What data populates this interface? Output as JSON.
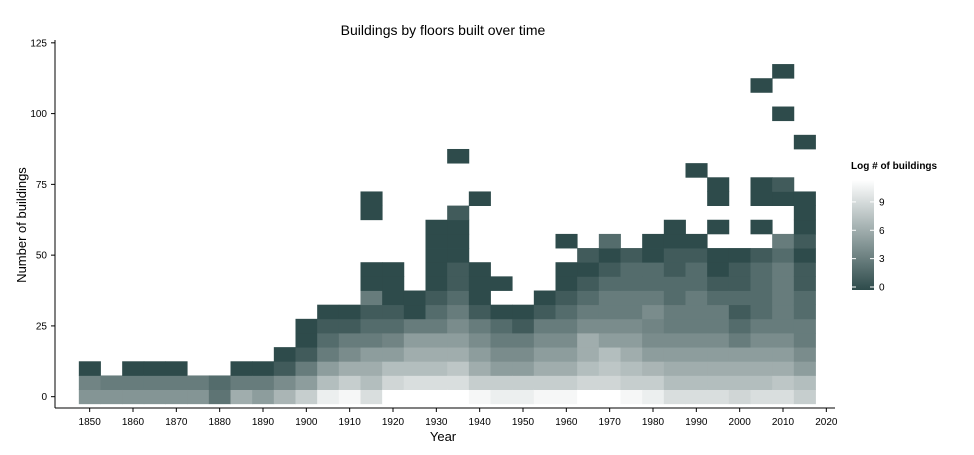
{
  "chart_data": {
    "type": "heatmap",
    "title": "Buildings by floors built over time",
    "xlabel": "Year",
    "ylabel": "Number of buildings",
    "xlim": [
      1842,
      2022
    ],
    "ylim": [
      -4,
      126
    ],
    "x_ticks": [
      1850,
      1860,
      1870,
      1880,
      1890,
      1900,
      1910,
      1920,
      1930,
      1940,
      1950,
      1960,
      1970,
      1980,
      1990,
      2000,
      2010,
      2020
    ],
    "y_ticks": [
      0,
      25,
      50,
      75,
      100,
      125
    ],
    "grid": false,
    "legend": {
      "title": "Log # of buildings",
      "position": "right",
      "min": 0,
      "max": 11,
      "ticks": [
        0,
        3,
        6,
        9
      ],
      "color_low": "#2e4b4b",
      "color_high": "#ffffff"
    },
    "bin_width_x": 5,
    "bin_width_y": 5,
    "cells": [
      [
        1850,
        0,
        4.5
      ],
      [
        1850,
        5,
        3.5
      ],
      [
        1850,
        10,
        0
      ],
      [
        1855,
        0,
        4.5
      ],
      [
        1855,
        5,
        3
      ],
      [
        1860,
        0,
        4.5
      ],
      [
        1860,
        5,
        3
      ],
      [
        1860,
        10,
        0
      ],
      [
        1865,
        0,
        4.5
      ],
      [
        1865,
        5,
        3
      ],
      [
        1865,
        10,
        0
      ],
      [
        1870,
        0,
        4.5
      ],
      [
        1870,
        5,
        3
      ],
      [
        1870,
        10,
        0
      ],
      [
        1875,
        0,
        4.5
      ],
      [
        1875,
        5,
        3
      ],
      [
        1880,
        0,
        2.5
      ],
      [
        1880,
        5,
        2
      ],
      [
        1885,
        0,
        6
      ],
      [
        1885,
        5,
        3
      ],
      [
        1885,
        10,
        0
      ],
      [
        1890,
        0,
        5
      ],
      [
        1890,
        5,
        3
      ],
      [
        1890,
        10,
        0
      ],
      [
        1895,
        0,
        6.5
      ],
      [
        1895,
        5,
        4
      ],
      [
        1895,
        10,
        1
      ],
      [
        1895,
        15,
        0
      ],
      [
        1900,
        0,
        8
      ],
      [
        1900,
        5,
        5
      ],
      [
        1900,
        10,
        3
      ],
      [
        1900,
        15,
        1
      ],
      [
        1900,
        20,
        0
      ],
      [
        1900,
        25,
        0
      ],
      [
        1905,
        0,
        10
      ],
      [
        1905,
        5,
        7
      ],
      [
        1905,
        10,
        5
      ],
      [
        1905,
        15,
        3
      ],
      [
        1905,
        20,
        2
      ],
      [
        1905,
        25,
        1
      ],
      [
        1905,
        30,
        0
      ],
      [
        1910,
        0,
        10.5
      ],
      [
        1910,
        5,
        8
      ],
      [
        1910,
        10,
        6
      ],
      [
        1910,
        15,
        4
      ],
      [
        1910,
        20,
        3
      ],
      [
        1910,
        25,
        1
      ],
      [
        1910,
        30,
        0
      ],
      [
        1915,
        0,
        9
      ],
      [
        1915,
        5,
        7
      ],
      [
        1915,
        10,
        6
      ],
      [
        1915,
        15,
        5
      ],
      [
        1915,
        20,
        3
      ],
      [
        1915,
        25,
        2
      ],
      [
        1915,
        30,
        1
      ],
      [
        1915,
        35,
        3
      ],
      [
        1915,
        40,
        0
      ],
      [
        1915,
        45,
        0
      ],
      [
        1915,
        65,
        0
      ],
      [
        1915,
        70,
        0
      ],
      [
        1920,
        0,
        11
      ],
      [
        1920,
        5,
        8.5
      ],
      [
        1920,
        10,
        7
      ],
      [
        1920,
        15,
        5
      ],
      [
        1920,
        20,
        3.5
      ],
      [
        1920,
        25,
        2
      ],
      [
        1920,
        30,
        1
      ],
      [
        1920,
        35,
        0
      ],
      [
        1920,
        40,
        0
      ],
      [
        1920,
        45,
        0
      ],
      [
        1925,
        0,
        11
      ],
      [
        1925,
        5,
        9
      ],
      [
        1925,
        10,
        7
      ],
      [
        1925,
        15,
        6
      ],
      [
        1925,
        20,
        5
      ],
      [
        1925,
        25,
        3
      ],
      [
        1925,
        30,
        0
      ],
      [
        1925,
        35,
        0
      ],
      [
        1930,
        0,
        11
      ],
      [
        1930,
        5,
        9
      ],
      [
        1930,
        10,
        7
      ],
      [
        1930,
        15,
        6
      ],
      [
        1930,
        20,
        5
      ],
      [
        1930,
        25,
        3
      ],
      [
        1930,
        30,
        2
      ],
      [
        1930,
        35,
        1
      ],
      [
        1930,
        40,
        0
      ],
      [
        1930,
        45,
        0
      ],
      [
        1930,
        50,
        0
      ],
      [
        1930,
        55,
        0
      ],
      [
        1930,
        60,
        0
      ],
      [
        1935,
        0,
        11
      ],
      [
        1935,
        5,
        9
      ],
      [
        1935,
        10,
        7.5
      ],
      [
        1935,
        15,
        6
      ],
      [
        1935,
        20,
        5
      ],
      [
        1935,
        25,
        4
      ],
      [
        1935,
        30,
        3
      ],
      [
        1935,
        35,
        2
      ],
      [
        1935,
        40,
        1
      ],
      [
        1935,
        45,
        1
      ],
      [
        1935,
        50,
        0
      ],
      [
        1935,
        55,
        0
      ],
      [
        1935,
        60,
        0
      ],
      [
        1935,
        65,
        1
      ],
      [
        1935,
        85,
        0
      ],
      [
        1940,
        0,
        10.5
      ],
      [
        1940,
        5,
        8
      ],
      [
        1940,
        10,
        6
      ],
      [
        1940,
        15,
        5
      ],
      [
        1940,
        20,
        4
      ],
      [
        1940,
        25,
        3
      ],
      [
        1940,
        30,
        1
      ],
      [
        1940,
        35,
        0
      ],
      [
        1940,
        40,
        0
      ],
      [
        1940,
        45,
        0
      ],
      [
        1940,
        70,
        0
      ],
      [
        1945,
        0,
        10
      ],
      [
        1945,
        5,
        8
      ],
      [
        1945,
        10,
        5
      ],
      [
        1945,
        15,
        4
      ],
      [
        1945,
        20,
        3
      ],
      [
        1945,
        25,
        2
      ],
      [
        1945,
        30,
        0
      ],
      [
        1945,
        40,
        0
      ],
      [
        1950,
        0,
        10
      ],
      [
        1950,
        5,
        8
      ],
      [
        1950,
        10,
        5
      ],
      [
        1950,
        15,
        4
      ],
      [
        1950,
        20,
        3
      ],
      [
        1950,
        25,
        1
      ],
      [
        1950,
        30,
        0
      ],
      [
        1955,
        0,
        10.5
      ],
      [
        1955,
        5,
        8
      ],
      [
        1955,
        10,
        6
      ],
      [
        1955,
        15,
        5
      ],
      [
        1955,
        20,
        4
      ],
      [
        1955,
        25,
        3
      ],
      [
        1955,
        30,
        1
      ],
      [
        1955,
        35,
        0
      ],
      [
        1960,
        0,
        10.5
      ],
      [
        1960,
        5,
        8
      ],
      [
        1960,
        10,
        6
      ],
      [
        1960,
        15,
        5
      ],
      [
        1960,
        20,
        4
      ],
      [
        1960,
        25,
        3
      ],
      [
        1960,
        30,
        2
      ],
      [
        1960,
        35,
        1
      ],
      [
        1960,
        40,
        0
      ],
      [
        1960,
        45,
        0
      ],
      [
        1960,
        55,
        0
      ],
      [
        1965,
        0,
        11
      ],
      [
        1965,
        5,
        8.5
      ],
      [
        1965,
        10,
        7
      ],
      [
        1965,
        15,
        6
      ],
      [
        1965,
        20,
        6
      ],
      [
        1965,
        25,
        4
      ],
      [
        1965,
        30,
        3
      ],
      [
        1965,
        35,
        2
      ],
      [
        1965,
        40,
        1
      ],
      [
        1965,
        45,
        0
      ],
      [
        1965,
        50,
        1
      ],
      [
        1970,
        0,
        11
      ],
      [
        1970,
        5,
        8.5
      ],
      [
        1970,
        10,
        7.5
      ],
      [
        1970,
        15,
        7
      ],
      [
        1970,
        20,
        5
      ],
      [
        1970,
        25,
        4
      ],
      [
        1970,
        30,
        3
      ],
      [
        1970,
        35,
        3
      ],
      [
        1970,
        40,
        2
      ],
      [
        1970,
        45,
        1
      ],
      [
        1970,
        50,
        0
      ],
      [
        1970,
        55,
        2
      ],
      [
        1975,
        0,
        10.5
      ],
      [
        1975,
        5,
        8
      ],
      [
        1975,
        10,
        7
      ],
      [
        1975,
        15,
        6
      ],
      [
        1975,
        20,
        5
      ],
      [
        1975,
        25,
        4
      ],
      [
        1975,
        30,
        3
      ],
      [
        1975,
        35,
        3
      ],
      [
        1975,
        40,
        2
      ],
      [
        1975,
        45,
        2
      ],
      [
        1975,
        50,
        1
      ],
      [
        1980,
        0,
        10
      ],
      [
        1980,
        5,
        8
      ],
      [
        1980,
        10,
        6.5
      ],
      [
        1980,
        15,
        5
      ],
      [
        1980,
        20,
        4
      ],
      [
        1980,
        25,
        3.5
      ],
      [
        1980,
        30,
        4
      ],
      [
        1980,
        35,
        3
      ],
      [
        1980,
        40,
        2
      ],
      [
        1980,
        45,
        2
      ],
      [
        1980,
        50,
        0
      ],
      [
        1980,
        55,
        0
      ],
      [
        1985,
        0,
        9
      ],
      [
        1985,
        5,
        7
      ],
      [
        1985,
        10,
        6
      ],
      [
        1985,
        15,
        5
      ],
      [
        1985,
        20,
        4
      ],
      [
        1985,
        25,
        3
      ],
      [
        1985,
        30,
        3
      ],
      [
        1985,
        35,
        2
      ],
      [
        1985,
        40,
        2
      ],
      [
        1985,
        45,
        1
      ],
      [
        1985,
        50,
        1
      ],
      [
        1985,
        55,
        0
      ],
      [
        1985,
        60,
        0
      ],
      [
        1990,
        0,
        9
      ],
      [
        1990,
        5,
        7
      ],
      [
        1990,
        10,
        6
      ],
      [
        1990,
        15,
        5
      ],
      [
        1990,
        20,
        4
      ],
      [
        1990,
        25,
        3
      ],
      [
        1990,
        30,
        3
      ],
      [
        1990,
        35,
        3
      ],
      [
        1990,
        40,
        2
      ],
      [
        1990,
        45,
        2
      ],
      [
        1990,
        50,
        1
      ],
      [
        1990,
        55,
        0
      ],
      [
        1990,
        80,
        0
      ],
      [
        1995,
        0,
        9
      ],
      [
        1995,
        5,
        7
      ],
      [
        1995,
        10,
        6
      ],
      [
        1995,
        15,
        5
      ],
      [
        1995,
        20,
        4
      ],
      [
        1995,
        25,
        3
      ],
      [
        1995,
        30,
        3
      ],
      [
        1995,
        35,
        2
      ],
      [
        1995,
        40,
        1
      ],
      [
        1995,
        45,
        0
      ],
      [
        1995,
        50,
        0
      ],
      [
        1995,
        60,
        0
      ],
      [
        1995,
        70,
        0
      ],
      [
        1995,
        75,
        0
      ],
      [
        2000,
        0,
        8.5
      ],
      [
        2000,
        5,
        7
      ],
      [
        2000,
        10,
        6
      ],
      [
        2000,
        15,
        5
      ],
      [
        2000,
        20,
        3
      ],
      [
        2000,
        25,
        2
      ],
      [
        2000,
        30,
        1
      ],
      [
        2000,
        35,
        2
      ],
      [
        2000,
        40,
        1
      ],
      [
        2000,
        45,
        1
      ],
      [
        2000,
        50,
        0
      ],
      [
        2005,
        0,
        9
      ],
      [
        2005,
        5,
        7
      ],
      [
        2005,
        10,
        6
      ],
      [
        2005,
        15,
        5
      ],
      [
        2005,
        20,
        4
      ],
      [
        2005,
        25,
        3
      ],
      [
        2005,
        30,
        2
      ],
      [
        2005,
        35,
        2
      ],
      [
        2005,
        40,
        2
      ],
      [
        2005,
        45,
        2
      ],
      [
        2005,
        50,
        1
      ],
      [
        2005,
        60,
        0
      ],
      [
        2005,
        70,
        0
      ],
      [
        2005,
        75,
        0
      ],
      [
        2005,
        110,
        0
      ],
      [
        2010,
        0,
        9
      ],
      [
        2010,
        5,
        7.5
      ],
      [
        2010,
        10,
        6
      ],
      [
        2010,
        15,
        5
      ],
      [
        2010,
        20,
        4
      ],
      [
        2010,
        25,
        3
      ],
      [
        2010,
        30,
        3
      ],
      [
        2010,
        35,
        3
      ],
      [
        2010,
        40,
        3
      ],
      [
        2010,
        45,
        3
      ],
      [
        2010,
        50,
        2
      ],
      [
        2010,
        55,
        3
      ],
      [
        2010,
        70,
        0
      ],
      [
        2010,
        75,
        1
      ],
      [
        2010,
        100,
        0
      ],
      [
        2010,
        115,
        0
      ],
      [
        2015,
        0,
        8
      ],
      [
        2015,
        5,
        7
      ],
      [
        2015,
        10,
        5
      ],
      [
        2015,
        15,
        4
      ],
      [
        2015,
        20,
        3
      ],
      [
        2015,
        25,
        3
      ],
      [
        2015,
        30,
        2
      ],
      [
        2015,
        35,
        2
      ],
      [
        2015,
        40,
        1
      ],
      [
        2015,
        45,
        1
      ],
      [
        2015,
        50,
        0
      ],
      [
        2015,
        55,
        1
      ],
      [
        2015,
        60,
        0
      ],
      [
        2015,
        65,
        0
      ],
      [
        2015,
        70,
        0
      ],
      [
        2015,
        90,
        0
      ]
    ]
  }
}
